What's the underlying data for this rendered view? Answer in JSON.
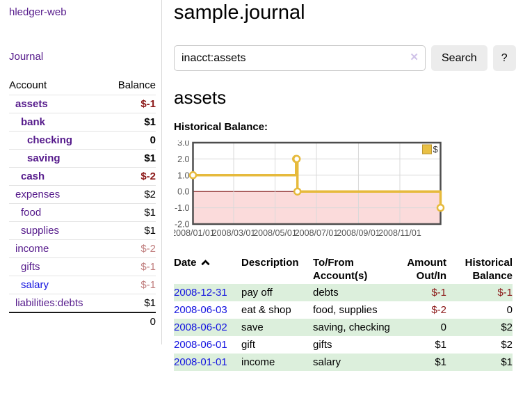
{
  "app_title": "hledger-web",
  "sidebar": {
    "journal_link": "Journal",
    "account_header": "Account",
    "balance_header": "Balance",
    "accounts": [
      {
        "name": "assets",
        "balance": "$-1"
      },
      {
        "name": "bank",
        "balance": "$1"
      },
      {
        "name": "checking",
        "balance": "0"
      },
      {
        "name": "saving",
        "balance": "$1"
      },
      {
        "name": "cash",
        "balance": "$-2"
      },
      {
        "name": "expenses",
        "balance": "$2"
      },
      {
        "name": "food",
        "balance": "$1"
      },
      {
        "name": "supplies",
        "balance": "$1"
      },
      {
        "name": "income",
        "balance": "$-2"
      },
      {
        "name": "gifts",
        "balance": "$-1"
      },
      {
        "name": "salary",
        "balance": "$-1"
      },
      {
        "name": "liabilities:debts",
        "balance": "$1"
      }
    ],
    "total": "0"
  },
  "main": {
    "title": "sample.journal",
    "search": {
      "value": "inacct:assets",
      "clear_icon": "✕",
      "search_button": "Search",
      "help_button": "?"
    },
    "account_heading": "assets",
    "chart_title": "Historical Balance:"
  },
  "chart_data": {
    "type": "line",
    "step": "after",
    "title": "Historical Balance",
    "xlabel": "",
    "ylabel": "",
    "series": [
      {
        "name": "$",
        "points": [
          [
            "2008-01-01",
            1
          ],
          [
            "2008-06-01",
            2
          ],
          [
            "2008-06-02",
            2
          ],
          [
            "2008-06-03",
            0
          ],
          [
            "2008-12-31",
            -1
          ]
        ]
      }
    ],
    "x_range": [
      "2008-01-01",
      "2008-12-31"
    ],
    "x_tick_dates": [
      "2008-01-01",
      "2008-03-01",
      "2008-05-01",
      "2008-07-01",
      "2008-09-01",
      "2008-11-01"
    ],
    "x_tick_labels": [
      "2008/01/01",
      "2008/03/01",
      "2008/05/01",
      "2008/07/01",
      "2008/09/01",
      "2008/11/01"
    ],
    "ylim": [
      -2,
      3
    ],
    "y_tick_values": [
      3,
      2,
      1,
      0,
      -1,
      -2
    ],
    "y_tick_labels": [
      "3.0",
      "2.0",
      "1.0",
      "0.0",
      "-1.0",
      "-2.0"
    ],
    "grid": true,
    "legend": {
      "label": "$",
      "position": "top-right"
    },
    "colors": {
      "line": "#e6ba3c",
      "marker_fill": "#ffffff",
      "negative_area": "#fbdbdb",
      "zero_line": "#7a0c0c",
      "grid": "#d9d9d9",
      "border": "#4d4d4d",
      "axis_text": "#555555",
      "legend_fill": "#e9c044",
      "legend_border": "#bd9733"
    }
  },
  "register": {
    "headers": {
      "date": "Date",
      "description": "Description",
      "tofrom": "To/From Account(s)",
      "amount": "Amount Out/In",
      "balance": "Historical Balance"
    },
    "rows": [
      {
        "date": "2008-12-31",
        "description": "pay off",
        "accounts": "debts",
        "amount": "$-1",
        "balance": "$-1"
      },
      {
        "date": "2008-06-03",
        "description": "eat & shop",
        "accounts": "food, supplies",
        "amount": "$-2",
        "balance": "0"
      },
      {
        "date": "2008-06-02",
        "description": "save",
        "accounts": "saving, checking",
        "amount": "0",
        "balance": "$2"
      },
      {
        "date": "2008-06-01",
        "description": "gift",
        "accounts": "gifts",
        "amount": "$1",
        "balance": "$2"
      },
      {
        "date": "2008-01-01",
        "description": "income",
        "accounts": "salary",
        "amount": "$1",
        "balance": "$1"
      }
    ]
  }
}
